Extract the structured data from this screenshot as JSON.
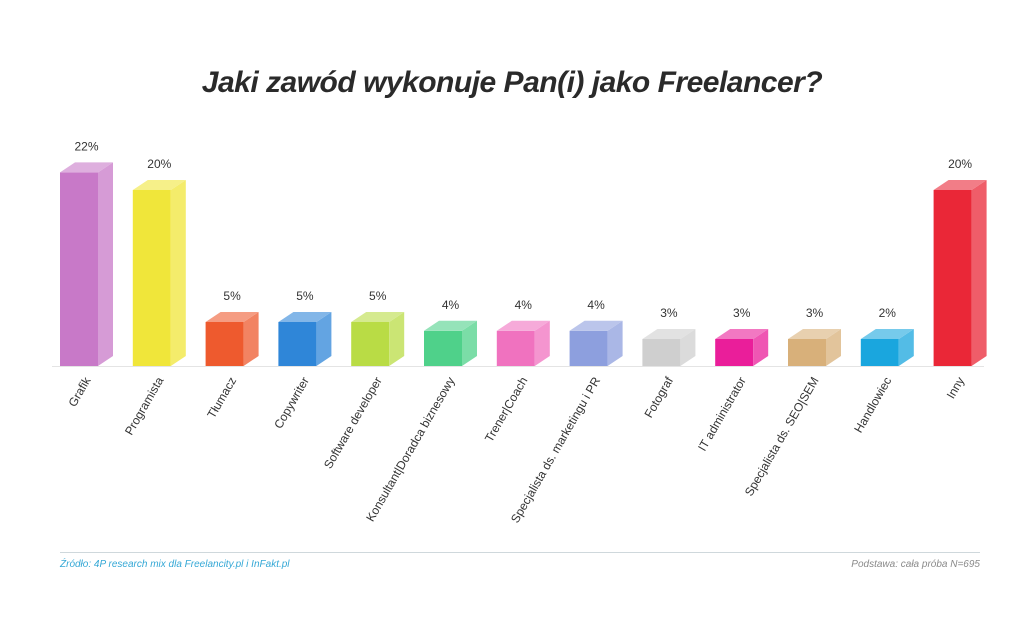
{
  "chart_data": {
    "type": "bar",
    "title": "Jaki zawód wykonuje Pan(i) jako Freelancer?",
    "categories": [
      "Grafik",
      "Programista",
      "Tłumacz",
      "Copywriter",
      "Software developer",
      "Konsultant|Doradca biznesowy",
      "Trener|Coach",
      "Specjalista ds. marketingu i PR",
      "Fotograf",
      "IT administrator",
      "Specjalista ds. SEO|SEM",
      "Handlowiec",
      "Inny"
    ],
    "values": [
      22,
      20,
      5,
      5,
      5,
      4,
      4,
      4,
      3,
      3,
      3,
      2,
      20
    ],
    "value_labels": [
      "22%",
      "20%",
      "5%",
      "5%",
      "5%",
      "4%",
      "4%",
      "4%",
      "3%",
      "3%",
      "3%",
      "2%",
      "20%"
    ],
    "colors": [
      "#c879c8",
      "#f0e63a",
      "#ee5a2e",
      "#2f86d8",
      "#b9dc45",
      "#4fd18a",
      "#f072bf",
      "#8d9fde",
      "#cfcfcf",
      "#ea1e9a",
      "#d8b07a",
      "#1aa6de",
      "#ea2737"
    ],
    "xlabel": "",
    "ylabel": "",
    "grid": false,
    "legend": "none"
  },
  "footer": {
    "source": "Źródło: 4P research mix dla Freelancity.pl i InFakt.pl",
    "base": "Podstawa: cała próba N=695"
  }
}
